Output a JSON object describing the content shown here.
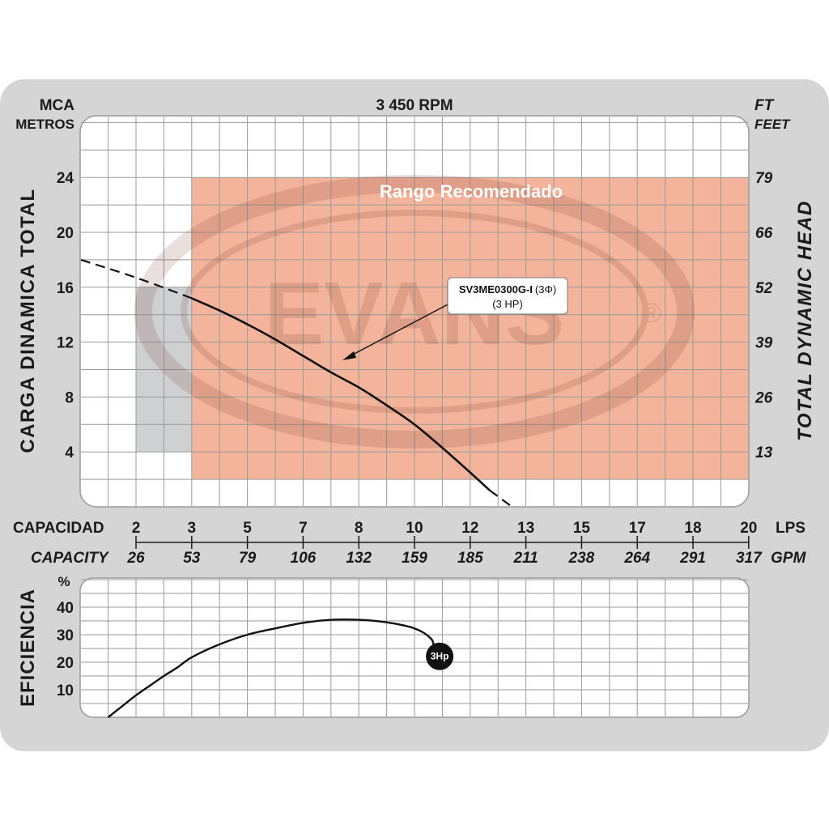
{
  "colors": {
    "frame": "#d5d5d5",
    "grid": "#9a9a9a",
    "recommended": "#f4b39b",
    "shaded": "#cfd0d2",
    "curve": "#111111"
  },
  "header": {
    "left_unit_top": "MCA",
    "left_unit_bottom": "METROS",
    "rpm": "3 450 RPM",
    "right_unit_top": "FT",
    "right_unit_bottom": "FEET"
  },
  "watermark": {
    "brand": "EVANS",
    "registered": "®"
  },
  "chart_data": [
    {
      "type": "line",
      "title": "3 450 RPM",
      "ylabel": "CARGA DINAMICA TOTAL",
      "ylabel_right": "TOTAL DYNAMIC HEAD",
      "y_unit": "MCA METROS",
      "y_unit_right": "FT FEET",
      "ylim": [
        0,
        28
      ],
      "y_ticks": [
        4,
        8,
        12,
        16,
        20,
        24
      ],
      "y_ticks_right": [
        "13",
        "26",
        "39",
        "52",
        "66",
        "79"
      ],
      "grid": true,
      "xlabel_top": "CAPACIDAD",
      "xlabel_bottom": "CAPACITY",
      "x_unit_top": "LPS",
      "x_unit_bottom": "GPM",
      "x_ticks_lps": [
        "2",
        "3",
        "5",
        "7",
        "8",
        "10",
        "12",
        "13",
        "15",
        "17",
        "18",
        "20"
      ],
      "x_ticks_gpm": [
        "26",
        "53",
        "79",
        "106",
        "132",
        "159",
        "185",
        "211",
        "238",
        "264",
        "291",
        "317"
      ],
      "recommended_range": {
        "label": "Rango Recomendado",
        "x_index": [
          1,
          11
        ],
        "y": [
          2,
          24
        ]
      },
      "shaded_region": {
        "x_index": [
          0,
          1
        ],
        "y": [
          4,
          16
        ]
      },
      "series": [
        {
          "name": "SV3ME0300G-I",
          "phase": "(3Φ)",
          "power": "(3 HP)",
          "solid": [
            [
              1,
              15.2
            ],
            [
              1.5,
              14.3
            ],
            [
              2,
              13.3
            ],
            [
              2.5,
              12.2
            ],
            [
              3,
              11
            ],
            [
              3.5,
              9.8
            ],
            [
              4,
              8.7
            ],
            [
              4.5,
              7.4
            ],
            [
              5,
              6
            ],
            [
              5.5,
              4.3
            ],
            [
              6,
              2.5
            ],
            [
              6.35,
              1.2
            ]
          ],
          "dashed_start": [
            [
              -1,
              18
            ],
            [
              0,
              16.7
            ],
            [
              1,
              15.2
            ]
          ],
          "dashed_end": [
            [
              6.35,
              1.2
            ],
            [
              6.75,
              0
            ]
          ]
        }
      ]
    },
    {
      "type": "line",
      "ylabel": "EFICIENCIA",
      "y_unit": "%",
      "ylim": [
        0,
        50
      ],
      "y_ticks": [
        10,
        20,
        30,
        40
      ],
      "grid": true,
      "series": [
        {
          "name": "3Hp",
          "points": [
            [
              -1,
              0
            ],
            [
              -0.5,
              4
            ],
            [
              0,
              8
            ],
            [
              0.5,
              11.5
            ],
            [
              1,
              15
            ],
            [
              1.5,
              18.2
            ],
            [
              2,
              21.8
            ],
            [
              3,
              26.5
            ],
            [
              4,
              30
            ],
            [
              5,
              32.3
            ],
            [
              6,
              34.3
            ],
            [
              7,
              35.4
            ],
            [
              8,
              35.4
            ],
            [
              9,
              34.5
            ],
            [
              10,
              32.3
            ],
            [
              10.6,
              28.5
            ],
            [
              10.7,
              24.5
            ]
          ],
          "label": "3Hp"
        }
      ]
    }
  ]
}
